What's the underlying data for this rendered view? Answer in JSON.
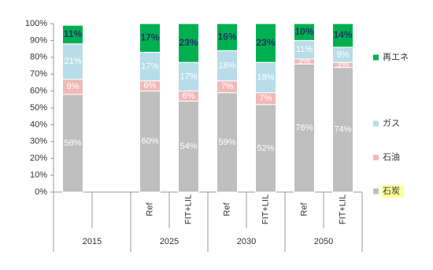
{
  "chart_data": {
    "type": "stacked-bar",
    "categories": [
      null,
      null,
      "Ref",
      "FIT+LIL",
      "Ref",
      "FIT+LIL",
      "Ref",
      "FIT+LIL"
    ],
    "groups": [
      "2015",
      "2025",
      "2030",
      "2050"
    ],
    "series": [
      {
        "name": "石炭",
        "color": "#bfbfbf",
        "values": [
          58,
          null,
          60,
          54,
          59,
          52,
          76,
          74
        ],
        "value_labels": [
          "58%",
          null,
          "60%",
          "54%",
          "59%",
          "52%",
          "76%",
          "74%"
        ]
      },
      {
        "name": "石油",
        "color": "#f2b8b8",
        "values": [
          9,
          null,
          6,
          6,
          7,
          7,
          3,
          3
        ],
        "value_labels": [
          "9%",
          null,
          "6%",
          "6%",
          "7%",
          "7%",
          "3%",
          "3%"
        ]
      },
      {
        "name": "ガス",
        "color": "#b7dde8",
        "values": [
          21,
          null,
          17,
          17,
          18,
          18,
          11,
          9
        ],
        "value_labels": [
          "21%",
          null,
          "17%",
          "17%",
          "18%",
          "18%",
          "11%",
          "9%"
        ]
      },
      {
        "name": "再エネ",
        "color": "#00b050",
        "values": [
          11,
          null,
          17,
          23,
          16,
          23,
          10,
          14
        ],
        "value_labels": [
          "11%",
          null,
          "17%",
          "23%",
          "16%",
          "23%",
          "10%",
          "14%"
        ]
      }
    ],
    "ylim": [
      0,
      100
    ],
    "yticks": [
      {
        "value": 0,
        "label": "0%"
      },
      {
        "value": 10,
        "label": "10%"
      },
      {
        "value": 20,
        "label": "20%"
      },
      {
        "value": 30,
        "label": "30%"
      },
      {
        "value": 40,
        "label": "40%"
      },
      {
        "value": 50,
        "label": "50%"
      },
      {
        "value": 60,
        "label": "60%"
      },
      {
        "value": 70,
        "label": "70%"
      },
      {
        "value": 80,
        "label": "80%"
      },
      {
        "value": 90,
        "label": "90%"
      },
      {
        "value": 100,
        "label": "100%"
      }
    ],
    "legend": "right"
  }
}
